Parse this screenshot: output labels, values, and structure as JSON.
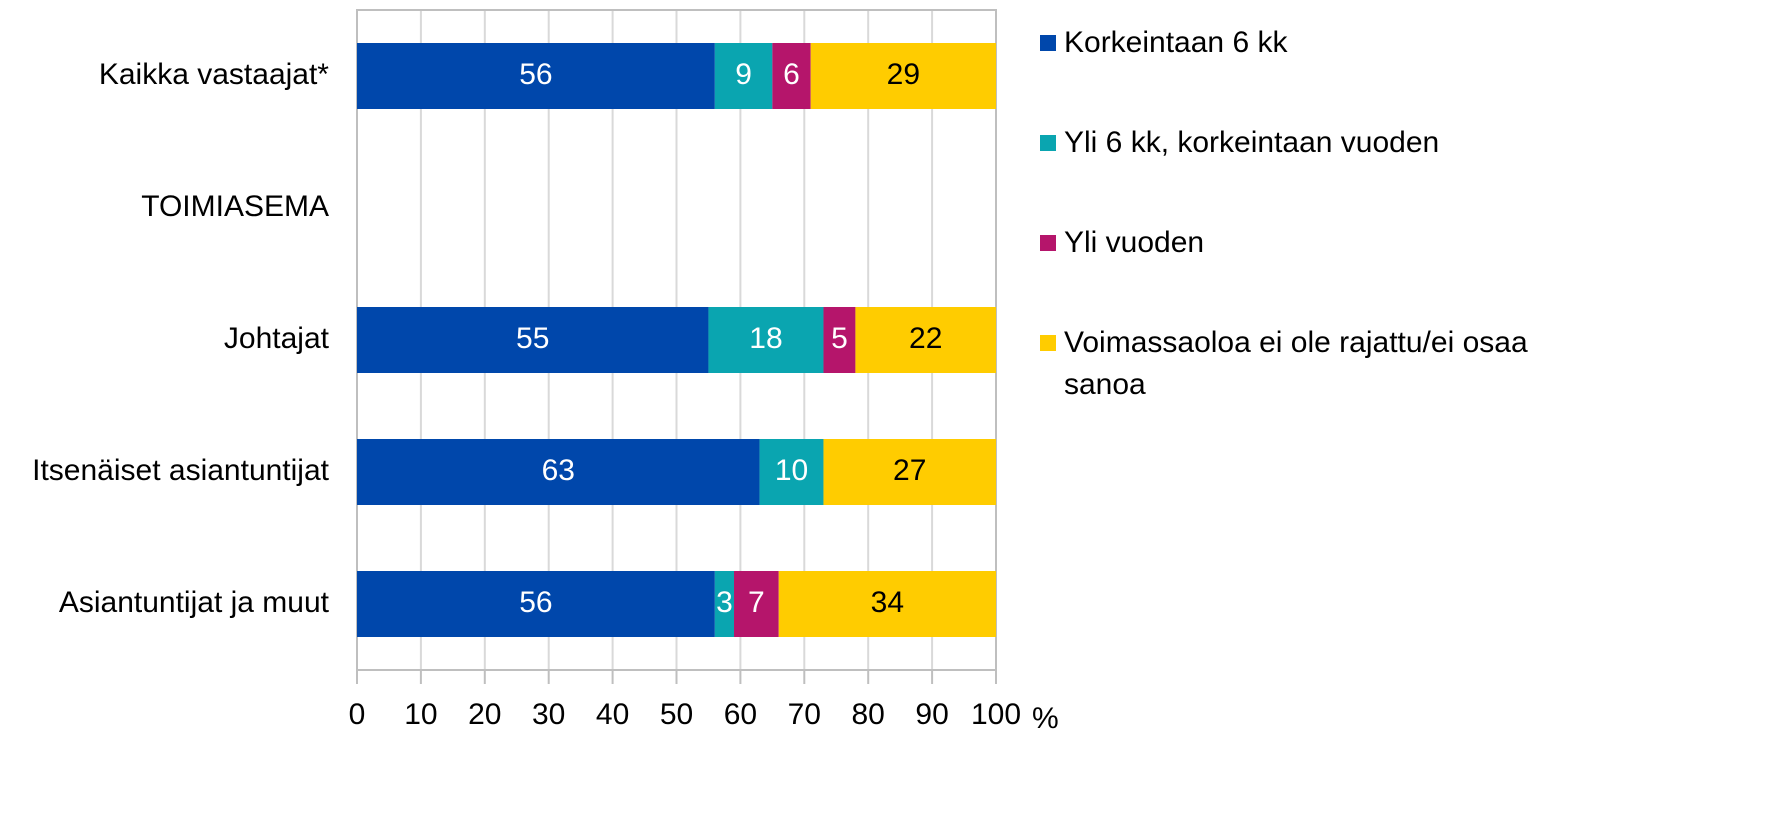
{
  "chart_data": {
    "type": "stacked-bar-horizontal",
    "categories": [
      "Kaikka vastaajat*",
      "TOIMIASEMA",
      "Johtajat",
      "Itsenäiset asiantuntijat",
      "Asiantuntijat ja muut"
    ],
    "series": [
      {
        "name": "Korkeintaan 6 kk",
        "color": "#0047ab",
        "values": [
          56,
          null,
          55,
          63,
          56
        ]
      },
      {
        "name": "Yli 6 kk, korkeintaan vuoden",
        "color": "#0aa5b0",
        "values": [
          9,
          null,
          18,
          10,
          3
        ]
      },
      {
        "name": "Yli vuoden",
        "color": "#b5156b",
        "values": [
          6,
          null,
          5,
          null,
          7
        ]
      },
      {
        "name": "Voimassaoloa ei ole rajattu/ei osaa sanoa",
        "color": "#ffcc00",
        "values": [
          29,
          null,
          22,
          27,
          34
        ]
      }
    ],
    "xlim": [
      0,
      100
    ],
    "xticks": [
      0,
      10,
      20,
      30,
      40,
      50,
      60,
      70,
      80,
      90,
      100
    ],
    "xlabel": "%",
    "grid": true,
    "legend": "right"
  }
}
